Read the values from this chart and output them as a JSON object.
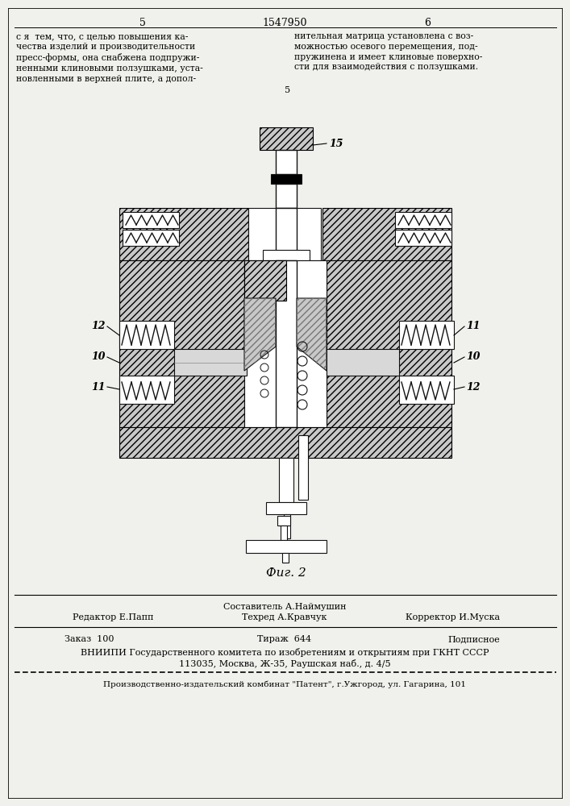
{
  "page_number_left": "5",
  "patent_number": "1547950",
  "page_number_right": "6",
  "text_left": "с я  тем, что, с целью повышения ка-\nчества изделий и производительности\nпресс-формы, она снабжена подпружи-\nненными клиновыми ползушками, уста-\nновленными в верхней плите, а допол-",
  "text_right": "нительная матрица установлена с воз-\nможностью осевого перемещения, под-\nпружинена и имеет клиновые поверхно-\nсти для взаимодействия с ползушками.",
  "line_number_5": "5",
  "fig_label": "Фиг. 2",
  "editor_label": "Редактор Е.Папп",
  "composer_label": "Составитель А.Наймушин",
  "techred_label": "Техред А.Кравчук",
  "corrector_label": "Корректор И.Муска",
  "order_label": "Заказ  100",
  "tirazh_label": "Тираж  644",
  "podpisnoe_label": "Подписное",
  "vniiipi_line1": "ВНИИПИ Государственного комитета по изобретениям и открытиям при ГКНТ СССР",
  "vniiipi_line2": "113035, Москва, Ж-35, Раушская наб., д. 4/5",
  "publisher_line": "Производственно-издательский комбинат \"Патент\", г.Ужгород, ул. Гагарина, 101",
  "bg_color": "#f0f0ec",
  "label_15": "15",
  "label_11_left": "11",
  "label_11_right": "11",
  "label_10_left": "10",
  "label_10_right": "10",
  "label_12_left": "12",
  "label_12_right": "12"
}
